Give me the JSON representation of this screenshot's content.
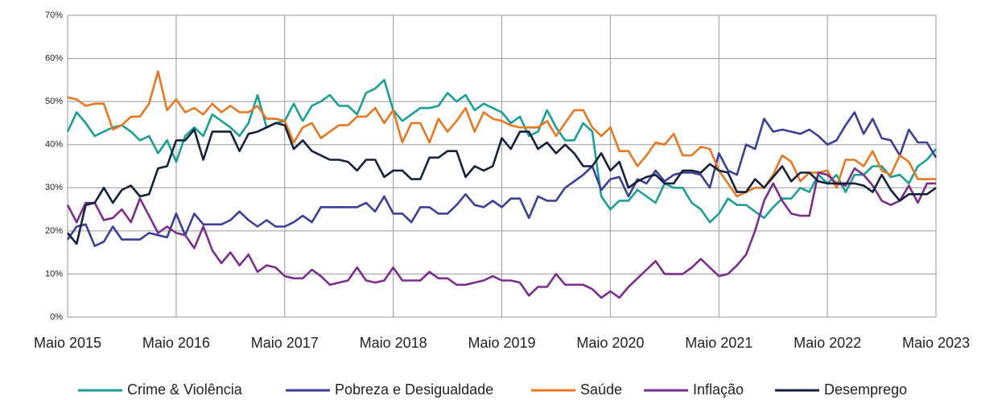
{
  "chart_data": {
    "type": "line",
    "categories": [
      "Maio 2015",
      null,
      null,
      null,
      null,
      null,
      null,
      null,
      null,
      null,
      null,
      null,
      "Maio 2016",
      null,
      null,
      null,
      null,
      null,
      null,
      null,
      null,
      null,
      null,
      null,
      "Maio 2017",
      null,
      null,
      null,
      null,
      null,
      null,
      null,
      null,
      null,
      null,
      null,
      "Maio 2018",
      null,
      null,
      null,
      null,
      null,
      null,
      null,
      null,
      null,
      null,
      null,
      "Maio 2019",
      null,
      null,
      null,
      null,
      null,
      null,
      null,
      null,
      null,
      null,
      null,
      "Maio 2020",
      null,
      null,
      null,
      null,
      null,
      null,
      null,
      null,
      null,
      null,
      null,
      "Maio 2021",
      null,
      null,
      null,
      null,
      null,
      null,
      null,
      null,
      null,
      null,
      null,
      "Maio 2022",
      null,
      null,
      null,
      null,
      null,
      null,
      null,
      null,
      null,
      null,
      null,
      "Maio 2023"
    ],
    "series": [
      {
        "name": "Crime & Violência",
        "color": "#1a9e96",
        "values": [
          43,
          47.5,
          45,
          42,
          43,
          44,
          44.5,
          43,
          41,
          42,
          38,
          41,
          36,
          42,
          44,
          42,
          47,
          45.5,
          44,
          42,
          45,
          51.5,
          44,
          45,
          45.5,
          49.5,
          45.5,
          49,
          50,
          51.5,
          49,
          49,
          47,
          52,
          53,
          55,
          48,
          45.5,
          47,
          48.5,
          48.5,
          49,
          52,
          50,
          51.5,
          48,
          49.5,
          48.5,
          47.5,
          45,
          46.5,
          42,
          43,
          48,
          44,
          41,
          41,
          45,
          43,
          28,
          25,
          27,
          27,
          29.5,
          28,
          26.5,
          31,
          30,
          30,
          26.5,
          25,
          22,
          24,
          27.5,
          26,
          26,
          24.5,
          23,
          25.5,
          27.5,
          27.5,
          30,
          29,
          33,
          31,
          33,
          29,
          33,
          33,
          35,
          35,
          32.5,
          33,
          31,
          35,
          36.5,
          39
        ]
      },
      {
        "name": "Pobreza e Desigualdade",
        "color": "#3b3f96",
        "values": [
          18,
          21,
          21.5,
          16.5,
          17.5,
          21,
          18,
          18,
          18,
          19.5,
          19,
          18.5,
          24,
          19,
          24,
          21.5,
          21.5,
          21.5,
          22.5,
          24.5,
          22.5,
          21,
          22.5,
          21,
          21,
          22,
          23.5,
          22,
          25.5,
          25.5,
          25.5,
          25.5,
          25.5,
          26.5,
          24.5,
          28,
          24,
          24,
          22,
          25.5,
          25.5,
          24,
          24,
          26,
          28.5,
          26,
          25.5,
          27,
          25.5,
          27.5,
          27.5,
          23,
          28,
          27,
          27,
          30,
          31.5,
          33,
          35,
          29.5,
          32,
          32.5,
          28,
          32,
          31,
          34,
          31.5,
          33,
          33.5,
          33.5,
          33,
          30,
          38,
          34,
          33,
          40,
          39,
          46,
          43,
          43.5,
          43,
          42.5,
          43.5,
          42,
          40,
          41,
          44.5,
          47.5,
          42.5,
          46,
          41.5,
          41,
          37.5,
          43.5,
          40.5,
          40.5,
          37
        ]
      },
      {
        "name": "Saúde",
        "color": "#e87722",
        "values": [
          51,
          50.5,
          49,
          49.5,
          49.5,
          43.5,
          44.5,
          46.5,
          46.5,
          49.5,
          57,
          48,
          50.5,
          47.5,
          48.5,
          47,
          49.5,
          47.5,
          49,
          47.5,
          47.5,
          49,
          46,
          46,
          45.5,
          40.5,
          44,
          45,
          41.5,
          43,
          44.5,
          44.5,
          46.5,
          46.5,
          48.5,
          45,
          48,
          40.5,
          45,
          45,
          40.5,
          46,
          43,
          45.5,
          48.5,
          43,
          47.5,
          46,
          45.5,
          44.5,
          44,
          44,
          44,
          45.5,
          42,
          45,
          48,
          48,
          44,
          42,
          44,
          38.5,
          38.5,
          35,
          37.5,
          40.5,
          40,
          42.5,
          37.5,
          37.5,
          39.5,
          39,
          34,
          31,
          28,
          29,
          30,
          30,
          33,
          37.5,
          36,
          31.5,
          33.5,
          33.5,
          34,
          30,
          36.5,
          36.5,
          35,
          38.5,
          34,
          33,
          37.5,
          36,
          32,
          32,
          32
        ]
      },
      {
        "name": "Inflação",
        "color": "#7b2d8e",
        "values": [
          26,
          22,
          26.5,
          26.5,
          22.5,
          23,
          25,
          22,
          27.5,
          23.5,
          19.5,
          21,
          19.5,
          19,
          16,
          21,
          15.5,
          12.5,
          15,
          12,
          14.5,
          10.5,
          12,
          11.5,
          9.5,
          9,
          9,
          11,
          9.5,
          7.5,
          8,
          8.5,
          11.5,
          8.5,
          8,
          8.5,
          11.5,
          8.5,
          8.5,
          8.5,
          10.5,
          9,
          9,
          7.5,
          7.5,
          8,
          8.5,
          9.5,
          8.5,
          8.5,
          8,
          5,
          7,
          7,
          10,
          7.5,
          7.5,
          7.5,
          6.5,
          4.5,
          6,
          4.5,
          7,
          9,
          11,
          13,
          10,
          10,
          10,
          11.5,
          13.5,
          11.5,
          9.5,
          10,
          12,
          14.5,
          20,
          27,
          31,
          27,
          24,
          23.5,
          23.5,
          33.5,
          33,
          31,
          30.5,
          34.5,
          33,
          30.5,
          27,
          26,
          27,
          30.5,
          26.5,
          31,
          31
        ]
      },
      {
        "name": "Desemprego",
        "color": "#14213d",
        "values": [
          19.5,
          17,
          26,
          26.5,
          30,
          26.5,
          29.5,
          30.5,
          28,
          28.5,
          34.5,
          35,
          41,
          41,
          43.5,
          36.5,
          43,
          43,
          43,
          38.5,
          42.5,
          43,
          44,
          45,
          44.5,
          39,
          41,
          38.5,
          37.5,
          36.5,
          36.5,
          36,
          34,
          36.5,
          36.5,
          32.5,
          34,
          34,
          32,
          32,
          37,
          37,
          38.5,
          38.5,
          32.5,
          35,
          34,
          35,
          41.5,
          39,
          43,
          43,
          39,
          40.5,
          38,
          40,
          38,
          35,
          35,
          38,
          34,
          36,
          30,
          31.5,
          32.5,
          33,
          31,
          31,
          34,
          34,
          33.5,
          35.5,
          34,
          33.5,
          29,
          29,
          32,
          30,
          32.5,
          35,
          31.5,
          33.5,
          33.5,
          31.5,
          31,
          31,
          31,
          31,
          30.5,
          29,
          33,
          29.5,
          27,
          28.5,
          28.5,
          28.5,
          30
        ]
      }
    ],
    "ylim": [
      0,
      70
    ],
    "yticks": [
      {
        "value": 0,
        "label": "0%"
      },
      {
        "value": 10,
        "label": "10%"
      },
      {
        "value": 20,
        "label": "20%"
      },
      {
        "value": 30,
        "label": "30%"
      },
      {
        "value": 40,
        "label": "40%"
      },
      {
        "value": 50,
        "label": "50%"
      },
      {
        "value": 60,
        "label": "60%"
      },
      {
        "value": 70,
        "label": "70%"
      }
    ],
    "grid": true
  }
}
